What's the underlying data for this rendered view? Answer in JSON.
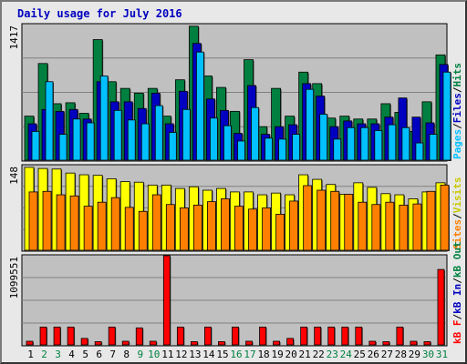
{
  "chart_data": {
    "title": "Daily usage for July 2016",
    "x": [
      1,
      2,
      3,
      4,
      5,
      6,
      7,
      8,
      9,
      10,
      11,
      12,
      13,
      14,
      15,
      16,
      17,
      18,
      19,
      20,
      21,
      22,
      23,
      24,
      25,
      26,
      27,
      28,
      29,
      30,
      31
    ],
    "weekend_days": [
      2,
      3,
      9,
      10,
      16,
      17,
      23,
      24,
      30,
      31
    ],
    "panels": [
      {
        "type": "bar",
        "axis_label": "1417",
        "ymax": 1417,
        "series": [
          {
            "name": "Hits",
            "color": "#008040",
            "values": [
              460,
              1010,
              590,
              600,
              490,
              1260,
              820,
              750,
              700,
              750,
              460,
              840,
              1400,
              880,
              760,
              510,
              1050,
              350,
              750,
              460,
              920,
              800,
              440,
              460,
              430,
              430,
              590,
              500,
              300,
              610,
              1100
            ]
          },
          {
            "name": "Files",
            "color": "#0000c0",
            "values": [
              380,
              530,
              510,
              530,
              430,
              820,
              610,
              610,
              540,
              700,
              380,
              720,
              1220,
              640,
              520,
              280,
              780,
              270,
              350,
              370,
              800,
              670,
              350,
              410,
              380,
              380,
              450,
              650,
              450,
              390,
              1000
            ]
          },
          {
            "name": "Pages",
            "color": "#00c0ff",
            "values": [
              300,
              820,
              270,
              430,
              390,
              880,
              520,
              420,
              380,
              570,
              290,
              530,
              1130,
              440,
              360,
              200,
              550,
              230,
              220,
              270,
              740,
              480,
              220,
              340,
              340,
              310,
              370,
              340,
              180,
              270,
              920
            ]
          }
        ]
      },
      {
        "type": "bar",
        "axis_label": "148",
        "ymax": 148,
        "series": [
          {
            "name": "Visits",
            "color": "#ffff00",
            "values": [
              145,
              143,
              142,
              135,
              132,
              131,
              125,
              120,
              119,
              114,
              114,
              108,
              111,
              105,
              108,
              102,
              102,
              97,
              100,
              97,
              132,
              124,
              115,
              98,
              118,
              110,
              99,
              97,
              90,
              102,
              118
            ]
          },
          {
            "name": "Sites",
            "color": "#ff8000",
            "values": [
              102,
              103,
              97,
              95,
              77,
              84,
              92,
              75,
              68,
              97,
              80,
              74,
              79,
              85,
              90,
              77,
              72,
              74,
              63,
              86,
              113,
              105,
              103,
              98,
              84,
              80,
              84,
              79,
              81,
              103,
              114
            ]
          }
        ]
      },
      {
        "type": "bar",
        "axis_label": "1099551",
        "ymax": 1099551,
        "series": [
          {
            "name": "kB F",
            "color": "#ff0000",
            "values": [
              45000,
              220000,
              220000,
              220000,
              80000,
              40000,
              220000,
              45000,
              210000,
              45000,
              1099551,
              220000,
              40000,
              220000,
              40000,
              220000,
              45000,
              220000,
              45000,
              80000,
              220000,
              220000,
              220000,
              220000,
              220000,
              45000,
              40000,
              220000,
              45000,
              40000,
              930000
            ]
          }
        ]
      }
    ],
    "legends": [
      [
        {
          "text": "Pages",
          "color": "#00c0ff"
        },
        {
          "text": "/",
          "color": "#000000"
        },
        {
          "text": "Files",
          "color": "#0000c0"
        },
        {
          "text": "/",
          "color": "#000000"
        },
        {
          "text": "Hits",
          "color": "#008040"
        }
      ],
      [
        {
          "text": "Sites",
          "color": "#ff8000"
        },
        {
          "text": "/",
          "color": "#000000"
        },
        {
          "text": "Visits",
          "color": "#c8c800"
        }
      ],
      [
        {
          "text": "kB F",
          "color": "#ff0000"
        },
        {
          "text": "/",
          "color": "#000000"
        },
        {
          "text": "kB In",
          "color": "#0000c0"
        },
        {
          "text": "/",
          "color": "#000000"
        },
        {
          "text": "kB Out",
          "color": "#008040"
        }
      ]
    ],
    "colors": {
      "title": "#0000c0",
      "plot_bg": "#c0c0c0",
      "gridline": "#808080",
      "weekday_label": "#000000",
      "weekend_label": "#008040"
    }
  }
}
